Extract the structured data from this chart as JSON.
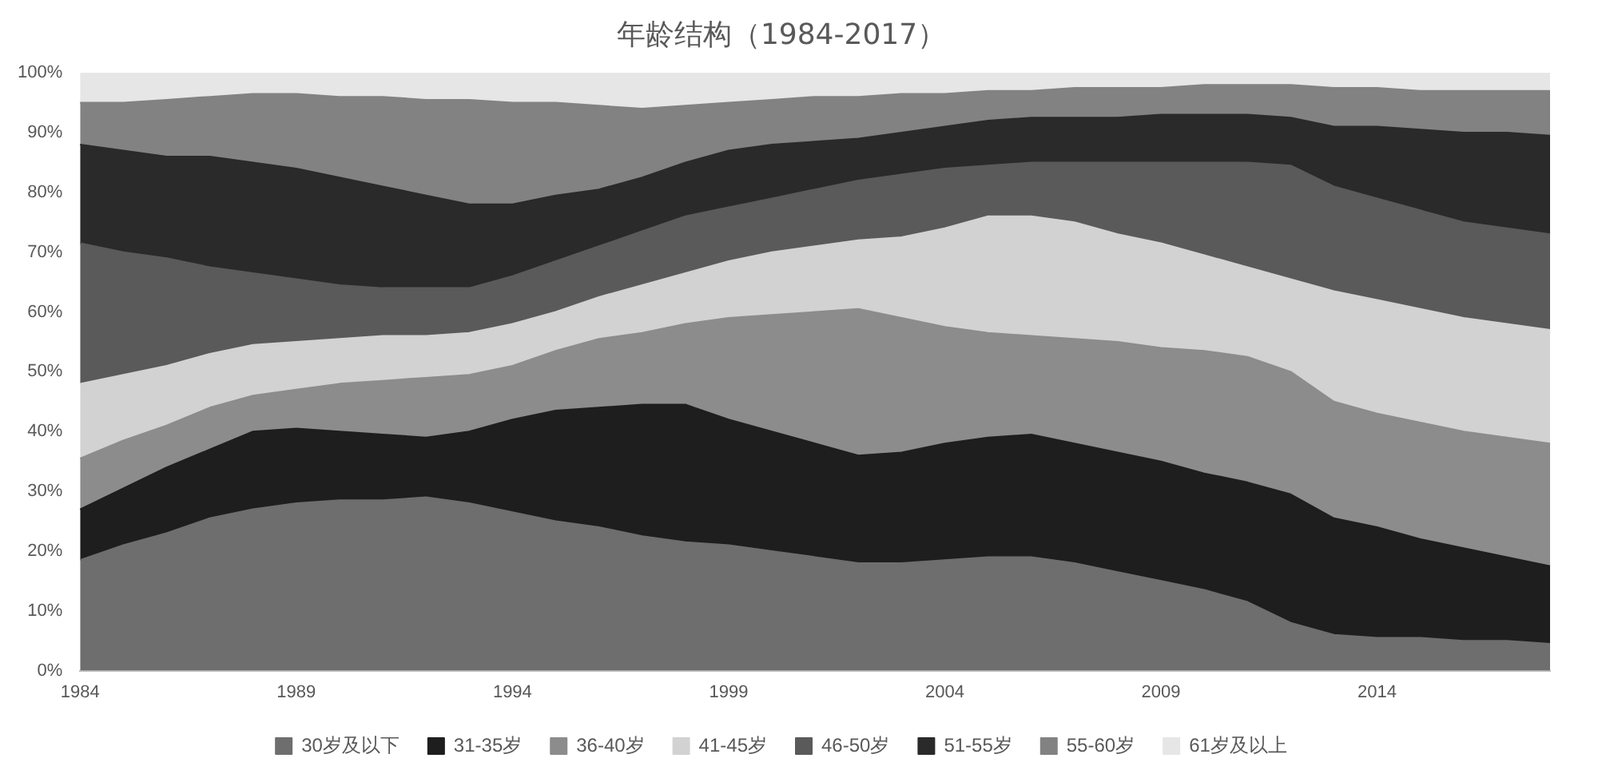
{
  "chart_data": {
    "type": "area",
    "title": "年龄结构（1984-2017）",
    "stacked": true,
    "legend": "bottom",
    "grid": false,
    "marker": "none",
    "categories": [
      "1984",
      null,
      null,
      null,
      null,
      "1989",
      null,
      null,
      null,
      null,
      "1994",
      null,
      null,
      null,
      null,
      "1999",
      null,
      null,
      null,
      null,
      "2004",
      null,
      null,
      null,
      null,
      "2009",
      null,
      null,
      null,
      null,
      "2014",
      null,
      null,
      null,
      null
    ],
    "ylim": [
      0,
      100
    ],
    "yticks": [
      {
        "value": 0,
        "label": "0%"
      },
      {
        "value": 10,
        "label": "10%"
      },
      {
        "value": 20,
        "label": "20%"
      },
      {
        "value": 30,
        "label": "30%"
      },
      {
        "value": 40,
        "label": "40%"
      },
      {
        "value": 50,
        "label": "50%"
      },
      {
        "value": 60,
        "label": "60%"
      },
      {
        "value": 70,
        "label": "70%"
      },
      {
        "value": 80,
        "label": "80%"
      },
      {
        "value": 90,
        "label": "90%"
      },
      {
        "value": 100,
        "label": "100%"
      }
    ],
    "series": [
      {
        "name": "30岁及以下",
        "color": "#6e6e6e",
        "values": [
          18.5,
          21,
          23,
          25.5,
          27,
          28,
          28.5,
          28.5,
          29,
          28,
          26.5,
          25,
          24,
          22.5,
          21.5,
          21,
          20,
          19,
          18,
          18,
          18.5,
          19,
          19,
          18,
          16.5,
          15,
          13.5,
          11.5,
          8,
          6,
          5.5,
          5.5,
          5,
          5,
          4.5
        ]
      },
      {
        "name": "31-35岁",
        "color": "#1e1e1e",
        "values": [
          8.5,
          9.5,
          11,
          11.5,
          13,
          12.5,
          11.5,
          11,
          10,
          12,
          15.5,
          18.5,
          20,
          22,
          23,
          21,
          20,
          19,
          18,
          18.5,
          19.5,
          20,
          20.5,
          20,
          20,
          20,
          19.5,
          20,
          21.5,
          19.5,
          18.5,
          16.5,
          15.5,
          14,
          13
        ]
      },
      {
        "name": "36-40岁",
        "color": "#8c8c8c",
        "values": [
          8.5,
          8,
          7,
          7,
          6,
          6.5,
          8,
          9,
          10,
          9.5,
          9,
          10,
          11.5,
          12,
          13.5,
          17,
          19.5,
          22,
          24.5,
          22.5,
          19.5,
          17.5,
          16.5,
          17.5,
          18.5,
          19,
          20.5,
          21,
          20.5,
          19.5,
          19,
          19.5,
          19.5,
          20,
          20.5
        ]
      },
      {
        "name": "41-45岁",
        "color": "#d2d2d2",
        "values": [
          12.5,
          11,
          10,
          9,
          8.5,
          8,
          7.5,
          7.5,
          7,
          7,
          7,
          6.5,
          7,
          8,
          8.5,
          9.5,
          10.5,
          11,
          11.5,
          13.5,
          16.5,
          19.5,
          20,
          19.5,
          18,
          17.5,
          16,
          15,
          15.5,
          18.5,
          19,
          19,
          19,
          19,
          19
        ]
      },
      {
        "name": "46-50岁",
        "color": "#5a5a5a",
        "values": [
          23.5,
          20.5,
          18,
          14.5,
          12,
          10.5,
          9,
          8,
          8,
          7.5,
          8,
          8.5,
          8.5,
          9,
          9.5,
          9,
          9,
          9.5,
          10,
          10.5,
          10,
          8.5,
          9,
          10,
          12,
          13.5,
          15.5,
          17.5,
          19,
          17.5,
          17,
          16.5,
          16,
          16,
          16
        ]
      },
      {
        "name": "51-55岁",
        "color": "#2a2a2a",
        "values": [
          16.5,
          17,
          17,
          18.5,
          18.5,
          18.5,
          18,
          17,
          15.5,
          14,
          12,
          11,
          9.5,
          9,
          9,
          9.5,
          9,
          8,
          7,
          7,
          7,
          7.5,
          7.5,
          7.5,
          7.5,
          8,
          8,
          8,
          8,
          10,
          12,
          13.5,
          15,
          16,
          16.5
        ]
      },
      {
        "name": "55-60岁",
        "color": "#828282",
        "values": [
          7,
          8,
          9.5,
          10,
          11.5,
          12.5,
          13.5,
          15,
          16,
          17.5,
          17,
          15.5,
          14,
          11.5,
          9.5,
          8,
          7.5,
          7.5,
          7,
          6.5,
          5.5,
          5,
          4.5,
          5,
          5,
          4.5,
          5,
          5,
          5.5,
          6.5,
          6.5,
          6.5,
          7,
          7,
          7.5
        ]
      },
      {
        "name": "61岁及以上",
        "color": "#e6e6e6",
        "values": [
          5,
          5,
          4.5,
          4,
          3.5,
          3.5,
          4,
          4,
          4.5,
          4.5,
          5,
          5,
          5.5,
          6,
          5.5,
          5,
          4.5,
          4,
          4,
          3.5,
          3.5,
          3,
          3,
          2.5,
          2.5,
          2.5,
          2,
          2,
          2,
          2.5,
          2.5,
          3,
          3,
          3,
          3
        ]
      }
    ]
  }
}
